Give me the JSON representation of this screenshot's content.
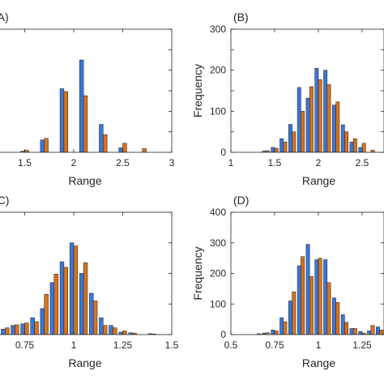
{
  "colors": {
    "series1": "#3a78d8",
    "series2": "#d9731c",
    "edge": "#1a1a1a",
    "axis": "#262626"
  },
  "chart_data": [
    {
      "panel_label": "(A)",
      "type": "bar",
      "title": "",
      "ylabel": "",
      "xlabel": "Range",
      "xlim": [
        1.0,
        3.0
      ],
      "ylim": [
        0,
        300
      ],
      "x_ticks": [
        1.5,
        2,
        2.5,
        3
      ],
      "x_tick_labels": [
        "1.5",
        "2",
        "2.5",
        "3"
      ],
      "y_ticks": [
        0,
        50,
        100,
        150,
        200,
        250,
        300
      ],
      "y_tick_labels": [],
      "x": [
        1.2,
        1.3,
        1.4,
        1.5,
        1.6,
        1.7,
        1.8,
        1.9,
        2.0,
        2.1,
        2.2,
        2.3,
        2.4,
        2.5,
        2.6,
        2.7,
        2.8,
        2.9
      ],
      "series": [
        {
          "name": "",
          "values": [
            0,
            0,
            0,
            3,
            0,
            30,
            0,
            155,
            0,
            225,
            0,
            68,
            0,
            11,
            0,
            0,
            0,
            0
          ]
        },
        {
          "name": "",
          "values": [
            0,
            0,
            0,
            5,
            0,
            34,
            0,
            148,
            0,
            138,
            0,
            43,
            0,
            22,
            0,
            9,
            0,
            0
          ]
        }
      ]
    },
    {
      "panel_label": "(B)",
      "type": "bar",
      "title": "",
      "ylabel": "Frequency",
      "xlabel": "Range",
      "xlim": [
        1.0,
        2.75
      ],
      "ylim": [
        0,
        300
      ],
      "x_ticks": [
        1,
        1.5,
        2,
        2.5
      ],
      "x_tick_labels": [
        "1",
        "1.5",
        "2",
        "2.5"
      ],
      "y_ticks": [
        0,
        50,
        100,
        150,
        200,
        250,
        300
      ],
      "y_tick_labels": [
        "0",
        "",
        "100",
        "",
        "200",
        "",
        "300"
      ],
      "x": [
        1.3,
        1.4,
        1.5,
        1.6,
        1.7,
        1.8,
        1.9,
        2.0,
        2.1,
        2.2,
        2.3,
        2.4,
        2.5,
        2.6,
        2.7
      ],
      "series": [
        {
          "name": "",
          "values": [
            0,
            3,
            12,
            33,
            68,
            158,
            132,
            205,
            200,
            115,
            67,
            25,
            12,
            0,
            0
          ]
        },
        {
          "name": "",
          "values": [
            0,
            4,
            10,
            25,
            50,
            100,
            160,
            177,
            165,
            123,
            50,
            33,
            22,
            5,
            0
          ]
        }
      ]
    },
    {
      "panel_label": "(C)",
      "type": "bar",
      "title": "",
      "ylabel": "",
      "xlabel": "Range",
      "xlim": [
        0.5,
        1.5
      ],
      "ylim": [
        0,
        400
      ],
      "x_ticks": [
        0.75,
        1,
        1.25,
        1.5
      ],
      "x_tick_labels": [
        "0.75",
        "1",
        "1.25",
        "1.5"
      ],
      "y_ticks": [
        0,
        100,
        200,
        300,
        400
      ],
      "y_tick_labels": [],
      "x": [
        0.5,
        0.55,
        0.6,
        0.65,
        0.7,
        0.75,
        0.8,
        0.85,
        0.9,
        0.95,
        1.0,
        1.05,
        1.1,
        1.15,
        1.2,
        1.25,
        1.3,
        1.35,
        1.4,
        1.45
      ],
      "series": [
        {
          "name": "",
          "values": [
            0,
            5,
            10,
            18,
            30,
            35,
            55,
            85,
            170,
            238,
            300,
            200,
            135,
            55,
            30,
            8,
            6,
            0,
            3,
            0
          ]
        },
        {
          "name": "",
          "values": [
            0,
            3,
            12,
            22,
            32,
            38,
            42,
            132,
            198,
            220,
            290,
            235,
            110,
            30,
            22,
            12,
            5,
            0,
            2,
            0
          ]
        }
      ]
    },
    {
      "panel_label": "(D)",
      "type": "bar",
      "title": "",
      "ylabel": "Frequency",
      "xlabel": "Range",
      "xlim": [
        0.5,
        1.375
      ],
      "ylim": [
        0,
        400
      ],
      "x_ticks": [
        0.5,
        0.75,
        1,
        1.25
      ],
      "x_tick_labels": [
        "0.5",
        "0.75",
        "1",
        "1.25"
      ],
      "y_ticks": [
        0,
        100,
        200,
        300,
        400
      ],
      "y_tick_labels": [
        "0",
        "100",
        "200",
        "300",
        "400"
      ],
      "x": [
        0.55,
        0.6,
        0.65,
        0.7,
        0.75,
        0.8,
        0.85,
        0.9,
        0.95,
        1.0,
        1.05,
        1.1,
        1.15,
        1.2,
        1.25,
        1.3,
        1.35
      ],
      "series": [
        {
          "name": "",
          "values": [
            0,
            0,
            0,
            5,
            15,
            55,
            110,
            225,
            295,
            245,
            245,
            120,
            65,
            20,
            10,
            12,
            25
          ]
        },
        {
          "name": "",
          "values": [
            0,
            0,
            3,
            6,
            12,
            42,
            140,
            255,
            190,
            250,
            170,
            105,
            40,
            20,
            5,
            30,
            15
          ]
        }
      ]
    }
  ]
}
